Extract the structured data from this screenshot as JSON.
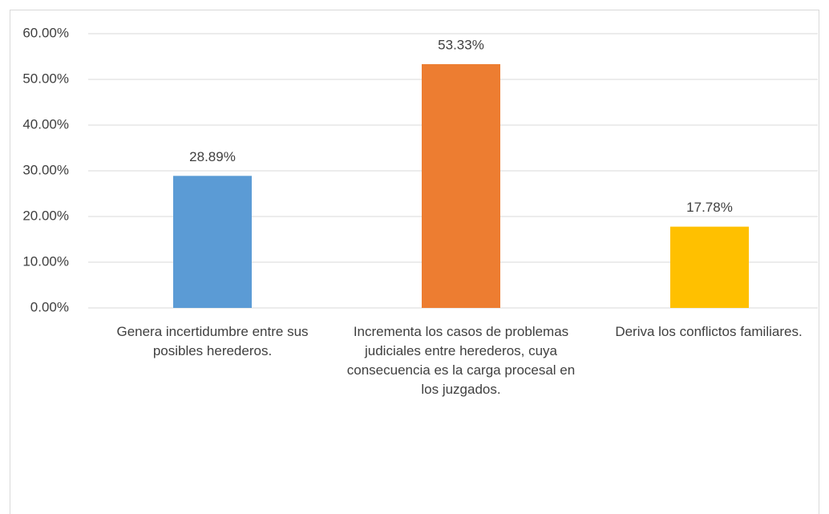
{
  "chart_data": {
    "type": "bar",
    "categories": [
      "Genera incertidumbre entre sus posibles herederos.",
      "Incrementa los casos de problemas judiciales entre herederos, cuya consecuencia es la carga procesal en los juzgados.",
      "Deriva los conflictos familiares."
    ],
    "values": [
      28.89,
      53.33,
      17.78
    ],
    "value_labels": [
      "28.89%",
      "53.33%",
      "17.78%"
    ],
    "colors": [
      "#5b9bd5",
      "#ed7d31",
      "#ffc000"
    ],
    "ylim": [
      0,
      60
    ],
    "yticks": [
      {
        "value": 0,
        "label": "0.00%"
      },
      {
        "value": 10,
        "label": "10.00%"
      },
      {
        "value": 20,
        "label": "20.00%"
      },
      {
        "value": 30,
        "label": "30.00%"
      },
      {
        "value": 40,
        "label": "40.00%"
      },
      {
        "value": 50,
        "label": "50.00%"
      },
      {
        "value": 60,
        "label": "60.00%"
      }
    ],
    "grid": true
  }
}
